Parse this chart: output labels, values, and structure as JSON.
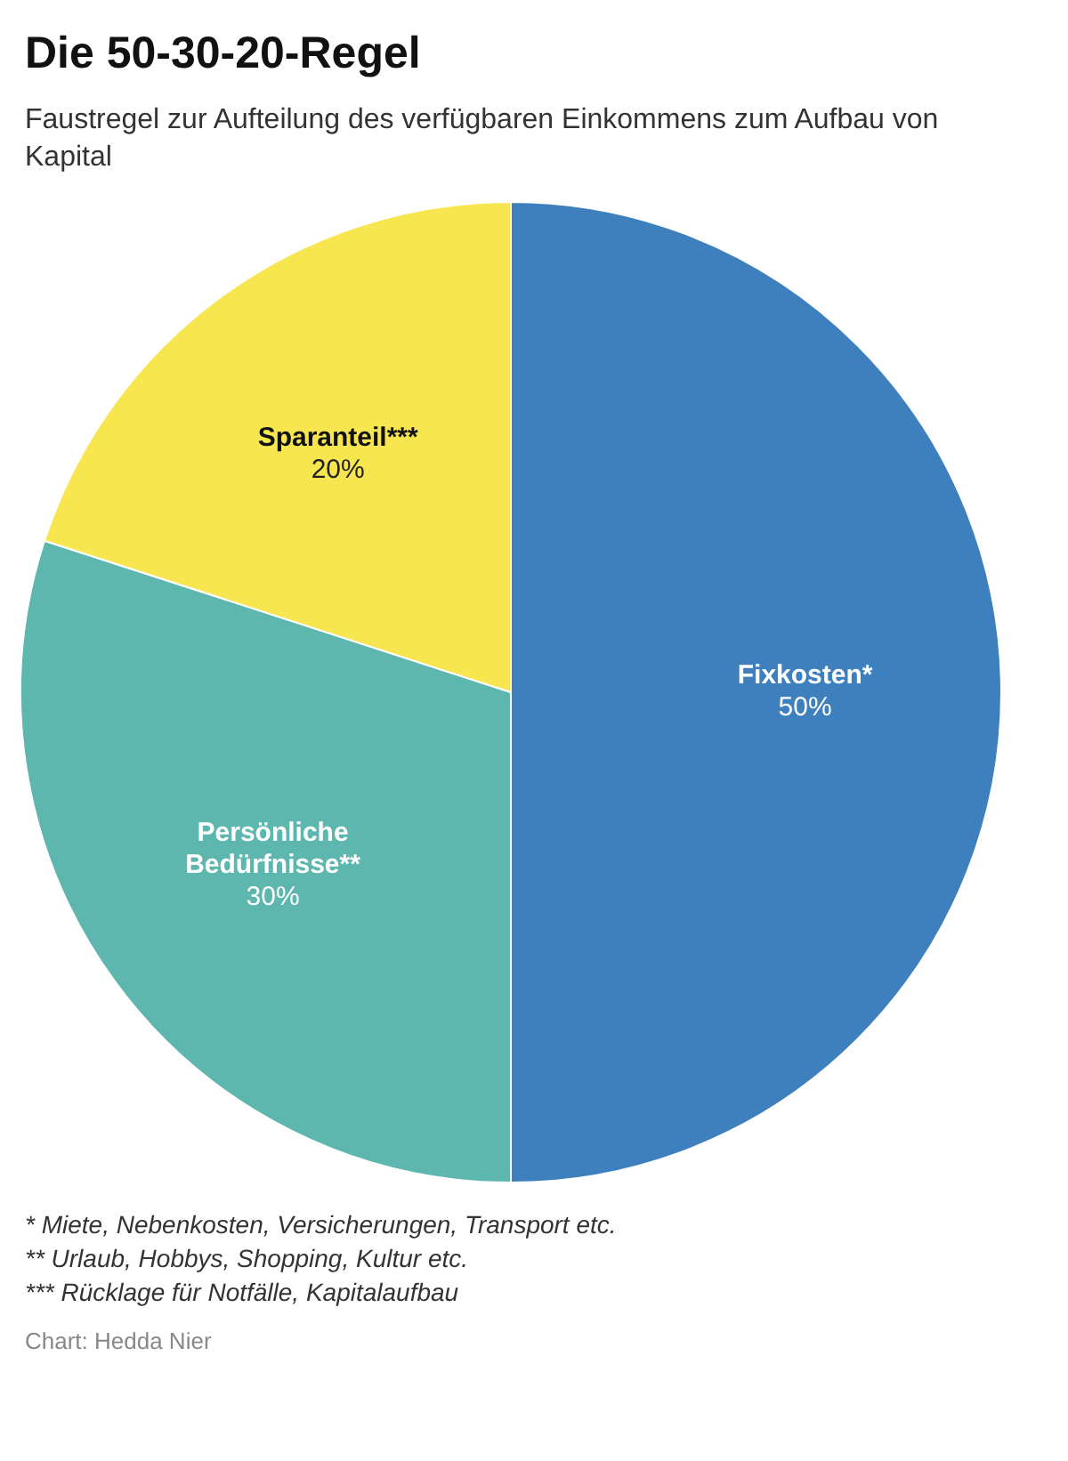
{
  "chart_data": {
    "type": "pie",
    "title": "Die 50-30-20-Regel",
    "subtitle": "Faustregel zur Aufteilung des verfügbaren Einkommens zum Aufbau von Kapital",
    "categories": [
      "Fixkosten*",
      "Persönliche Bedürfnisse**",
      "Sparanteil***"
    ],
    "values": [
      50,
      30,
      20
    ],
    "value_labels": [
      "50%",
      "30%",
      "20%"
    ],
    "colors": [
      "#3d80bd",
      "#5db7ae",
      "#f7e64f"
    ],
    "legend": false,
    "annotations": [
      "* Miete, Nebenkosten, Versicherungen, Transport etc.",
      "** Urlaub, Hobbys, Shopping, Kultur etc.",
      "*** Rücklage für Notfälle, Kapitalaufbau",
      "Chart: Hedda Nier"
    ]
  }
}
